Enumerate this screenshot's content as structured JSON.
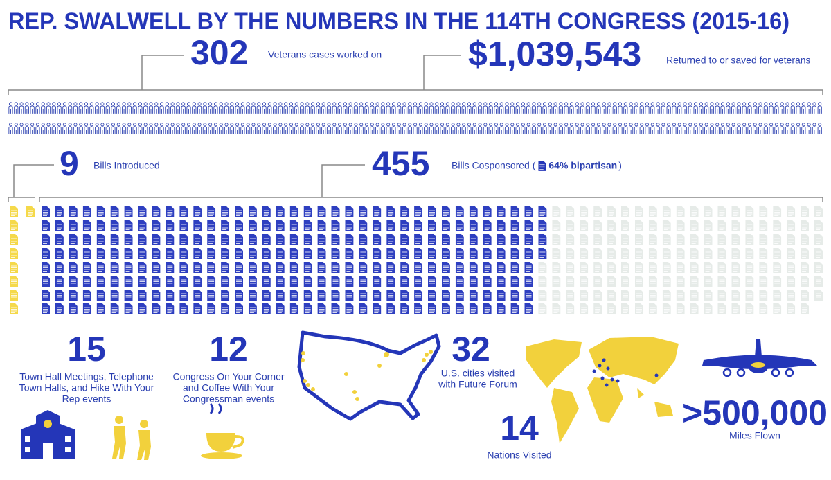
{
  "title": "REP. SWALWELL BY THE NUMBERS IN THE 114TH CONGRESS (2015-16)",
  "veterans": {
    "cases": {
      "number": 302,
      "label": "Veterans cases worked on"
    },
    "savings": {
      "amount": "$1,039,543",
      "label": "Returned to or saved for veterans"
    }
  },
  "bills": {
    "introduced": {
      "number": 9,
      "label": "Bills Introduced"
    },
    "cosponsored": {
      "number": 455,
      "label": "Bills Cosponsored (",
      "bipartisan": "64% bipartisan",
      "close": ")"
    }
  },
  "events": [
    {
      "number": 15,
      "lines": [
        "Town Hall Meetings, Telephone",
        "Town Halls, and Hike With Your",
        "Rep events"
      ]
    },
    {
      "number": 12,
      "lines": [
        "Congress On Your Corner",
        "and Coffee With Your",
        "Congressman events"
      ]
    }
  ],
  "travel": {
    "cities": {
      "number": 32,
      "lines": [
        "U.S. cities visited",
        "with Future Forum"
      ]
    },
    "nations": {
      "number": 14,
      "label": "Nations Visited"
    },
    "miles": {
      "amount": ">500,000",
      "label": "Miles Flown"
    }
  }
}
